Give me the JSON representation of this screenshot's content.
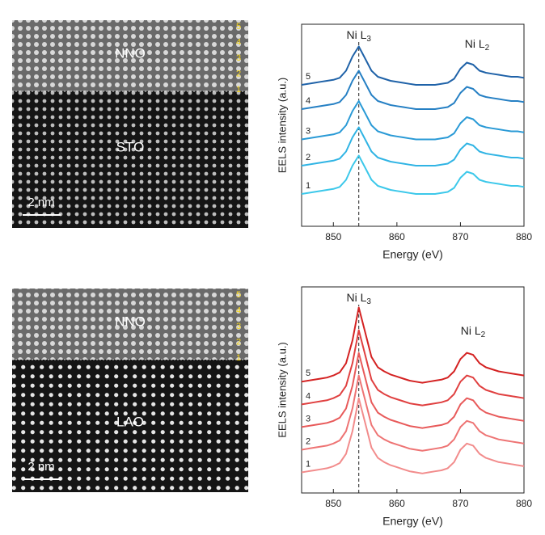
{
  "images": [
    {
      "labels": {
        "film": "NNO",
        "substrate": "STO"
      },
      "scale_bar": "2 nm",
      "layers": [
        "5",
        "4",
        "3",
        "2",
        "1"
      ]
    },
    {
      "labels": {
        "film": "NNO",
        "substrate": "LAO"
      },
      "scale_bar": "2 nm",
      "layers": [
        "5",
        "4",
        "3",
        "2",
        "1"
      ]
    }
  ],
  "chart_data": [
    {
      "type": "line",
      "x_label": "Energy (eV)",
      "y_label": "EELS intensity (a.u.)",
      "annotations": [
        {
          "text": "Ni L",
          "sub": "3"
        },
        {
          "text": "Ni L",
          "sub": "2"
        }
      ],
      "reference_x": 854,
      "xlim": [
        845,
        880
      ],
      "xticks": [
        850,
        860,
        870,
        880
      ],
      "ylim": [
        0,
        10
      ],
      "x": [
        845,
        846,
        847,
        848,
        849,
        850,
        851,
        852,
        853,
        854,
        855,
        856,
        857,
        858,
        859,
        860,
        861,
        862,
        863,
        864,
        865,
        866,
        867,
        868,
        869,
        870,
        871,
        872,
        873,
        874,
        875,
        876,
        877,
        878,
        879,
        880
      ],
      "series": [
        {
          "name": "1",
          "color": "#3cc8ea",
          "values": [
            1.6,
            1.65,
            1.7,
            1.75,
            1.8,
            1.85,
            1.95,
            2.3,
            3.0,
            3.5,
            2.9,
            2.3,
            2.0,
            1.9,
            1.8,
            1.75,
            1.7,
            1.65,
            1.6,
            1.6,
            1.6,
            1.6,
            1.65,
            1.7,
            1.9,
            2.4,
            2.7,
            2.6,
            2.3,
            2.2,
            2.15,
            2.1,
            2.05,
            2.0,
            2.0,
            1.95
          ]
        },
        {
          "name": "2",
          "color": "#30b4e4",
          "values": [
            3.0,
            3.05,
            3.1,
            3.15,
            3.2,
            3.25,
            3.35,
            3.7,
            4.4,
            4.9,
            4.3,
            3.7,
            3.4,
            3.3,
            3.2,
            3.15,
            3.1,
            3.05,
            3.0,
            3.0,
            3.0,
            3.0,
            3.05,
            3.1,
            3.3,
            3.8,
            4.1,
            4.0,
            3.7,
            3.6,
            3.55,
            3.5,
            3.45,
            3.4,
            3.4,
            3.35
          ]
        },
        {
          "name": "3",
          "color": "#2a9ad6",
          "values": [
            4.3,
            4.35,
            4.4,
            4.45,
            4.5,
            4.55,
            4.65,
            5.0,
            5.7,
            6.2,
            5.6,
            5.0,
            4.7,
            4.6,
            4.5,
            4.45,
            4.4,
            4.35,
            4.3,
            4.3,
            4.3,
            4.3,
            4.35,
            4.4,
            4.6,
            5.1,
            5.4,
            5.3,
            5.0,
            4.9,
            4.85,
            4.8,
            4.75,
            4.7,
            4.7,
            4.65
          ]
        },
        {
          "name": "4",
          "color": "#2680c4",
          "values": [
            5.8,
            5.85,
            5.9,
            5.95,
            6.0,
            6.05,
            6.15,
            6.5,
            7.2,
            7.7,
            7.1,
            6.5,
            6.2,
            6.1,
            6.0,
            5.95,
            5.9,
            5.85,
            5.8,
            5.8,
            5.8,
            5.8,
            5.85,
            5.9,
            6.1,
            6.6,
            6.9,
            6.8,
            6.5,
            6.4,
            6.35,
            6.3,
            6.25,
            6.2,
            6.2,
            6.15
          ]
        },
        {
          "name": "5",
          "color": "#1f62a8",
          "values": [
            7.0,
            7.05,
            7.1,
            7.15,
            7.2,
            7.25,
            7.35,
            7.7,
            8.4,
            8.9,
            8.3,
            7.7,
            7.4,
            7.3,
            7.2,
            7.15,
            7.1,
            7.05,
            7.0,
            7.0,
            7.0,
            7.0,
            7.05,
            7.1,
            7.3,
            7.8,
            8.1,
            8.0,
            7.7,
            7.6,
            7.55,
            7.5,
            7.45,
            7.4,
            7.4,
            7.35
          ]
        }
      ]
    },
    {
      "type": "line",
      "x_label": "Energy (eV)",
      "y_label": "EELS intensity (a.u.)",
      "annotations": [
        {
          "text": "Ni L",
          "sub": "3"
        },
        {
          "text": "Ni L",
          "sub": "2"
        }
      ],
      "reference_x": 854,
      "xlim": [
        845,
        880
      ],
      "xticks": [
        850,
        860,
        870,
        880
      ],
      "ylim": [
        0,
        10
      ],
      "x": [
        845,
        846,
        847,
        848,
        849,
        850,
        851,
        852,
        853,
        854,
        855,
        856,
        857,
        858,
        859,
        860,
        861,
        862,
        863,
        864,
        865,
        866,
        867,
        868,
        869,
        870,
        871,
        872,
        873,
        874,
        875,
        876,
        877,
        878,
        879,
        880
      ],
      "series": [
        {
          "name": "1",
          "color": "#f28c8c",
          "values": [
            1.0,
            1.05,
            1.1,
            1.15,
            1.2,
            1.3,
            1.45,
            1.9,
            3.0,
            4.6,
            3.4,
            2.2,
            1.7,
            1.5,
            1.35,
            1.25,
            1.15,
            1.05,
            1.0,
            0.95,
            1.0,
            1.05,
            1.1,
            1.2,
            1.5,
            2.1,
            2.4,
            2.3,
            1.9,
            1.7,
            1.6,
            1.5,
            1.45,
            1.4,
            1.35,
            1.3
          ]
        },
        {
          "name": "2",
          "color": "#ee7474",
          "values": [
            2.1,
            2.15,
            2.2,
            2.25,
            2.3,
            2.4,
            2.55,
            3.0,
            4.1,
            5.7,
            4.5,
            3.3,
            2.8,
            2.6,
            2.45,
            2.35,
            2.25,
            2.15,
            2.1,
            2.05,
            2.1,
            2.15,
            2.2,
            2.3,
            2.6,
            3.2,
            3.5,
            3.4,
            3.0,
            2.8,
            2.7,
            2.6,
            2.55,
            2.5,
            2.45,
            2.4
          ]
        },
        {
          "name": "3",
          "color": "#e85a5a",
          "values": [
            3.2,
            3.25,
            3.3,
            3.35,
            3.4,
            3.5,
            3.65,
            4.1,
            5.2,
            6.8,
            5.6,
            4.4,
            3.9,
            3.7,
            3.55,
            3.45,
            3.35,
            3.25,
            3.2,
            3.15,
            3.2,
            3.25,
            3.3,
            3.4,
            3.7,
            4.3,
            4.6,
            4.5,
            4.1,
            3.9,
            3.8,
            3.7,
            3.65,
            3.6,
            3.55,
            3.5
          ]
        },
        {
          "name": "4",
          "color": "#e04040",
          "values": [
            4.3,
            4.35,
            4.4,
            4.45,
            4.5,
            4.6,
            4.75,
            5.2,
            6.3,
            7.9,
            6.7,
            5.5,
            5.0,
            4.8,
            4.65,
            4.55,
            4.45,
            4.35,
            4.3,
            4.25,
            4.3,
            4.35,
            4.4,
            4.5,
            4.8,
            5.4,
            5.7,
            5.6,
            5.2,
            5.0,
            4.9,
            4.8,
            4.75,
            4.7,
            4.65,
            4.6
          ]
        },
        {
          "name": "5",
          "color": "#d42222",
          "values": [
            5.4,
            5.45,
            5.5,
            5.55,
            5.6,
            5.7,
            5.85,
            6.3,
            7.4,
            9.0,
            7.8,
            6.6,
            6.1,
            5.9,
            5.75,
            5.65,
            5.55,
            5.45,
            5.4,
            5.35,
            5.4,
            5.45,
            5.5,
            5.6,
            5.9,
            6.5,
            6.8,
            6.7,
            6.3,
            6.1,
            6.0,
            5.9,
            5.85,
            5.8,
            5.75,
            5.7
          ]
        }
      ]
    }
  ]
}
